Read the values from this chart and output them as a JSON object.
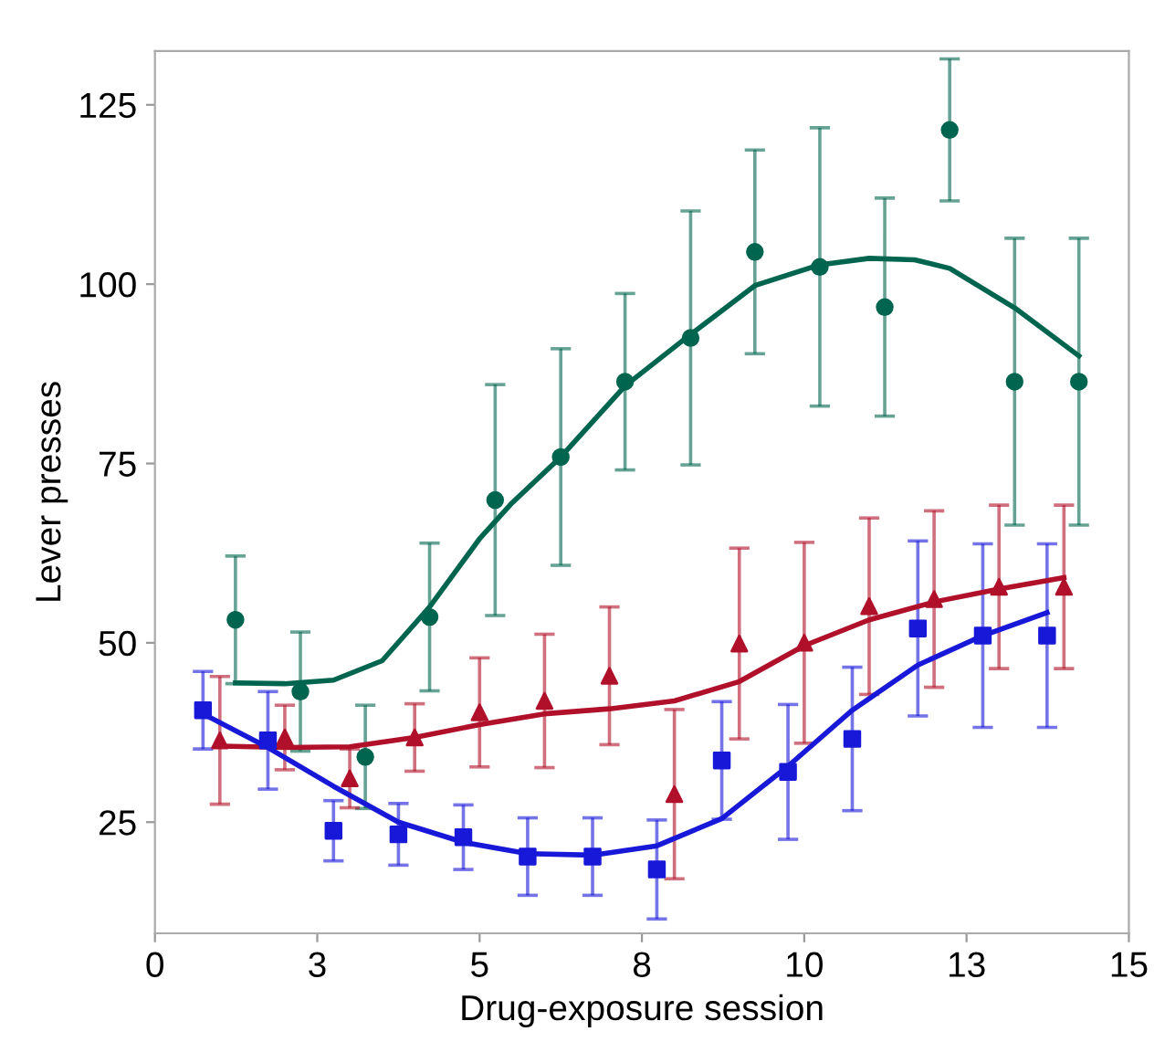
{
  "chart_data": {
    "type": "scatter",
    "xlabel": "Drug-exposure session",
    "ylabel": "Lever presses",
    "xlim": [
      0,
      15
    ],
    "xticks": [
      0,
      {
        "value": 2.5,
        "label": "3"
      },
      5,
      {
        "value": 7.5,
        "label": "8"
      },
      10,
      {
        "value": 12.5,
        "label": "13"
      },
      15
    ],
    "ylim": [
      9.5,
      132.5
    ],
    "yticks": [
      25,
      50,
      75,
      100,
      125
    ],
    "grid": false,
    "legend": false,
    "series": [
      {
        "marker": "circle",
        "color": "#00654f",
        "x": [
          1.24,
          2.24,
          3.24,
          4.23,
          5.24,
          6.25,
          7.24,
          8.25,
          9.24,
          10.24,
          11.24,
          12.24,
          13.24,
          14.23
        ],
        "values": [
          53.2,
          43.2,
          34.1,
          53.6,
          69.9,
          75.9,
          86.4,
          92.5,
          104.5,
          102.4,
          96.8,
          121.5,
          86.4,
          86.4
        ],
        "errors": [
          8.9,
          8.3,
          7.2,
          10.3,
          16.1,
          15.1,
          12.3,
          17.7,
          14.2,
          19.4,
          15.2,
          9.9,
          20,
          20
        ]
      },
      {
        "marker": "triangle",
        "color": "#b0102a",
        "x": [
          1,
          2,
          3,
          4,
          5,
          6,
          7,
          8,
          9,
          10,
          11,
          12,
          13,
          14
        ],
        "values": [
          36.4,
          36.8,
          31.1,
          36.8,
          40.3,
          41.9,
          45.4,
          28.9,
          49.9,
          50,
          55.1,
          56.1,
          57.8,
          57.8
        ],
        "errors": [
          8.9,
          4.5,
          4.1,
          4.7,
          7.6,
          9.3,
          9.6,
          11.8,
          13.3,
          14,
          12.3,
          12.3,
          11.4,
          11.4
        ]
      },
      {
        "marker": "square",
        "color": "#1818d8",
        "x": [
          0.74,
          1.74,
          2.75,
          3.75,
          4.75,
          5.74,
          6.74,
          7.73,
          8.73,
          9.75,
          10.74,
          11.75,
          12.75,
          13.74
        ],
        "values": [
          40.6,
          36.4,
          23.8,
          23.3,
          22.9,
          20.2,
          20.2,
          18.4,
          33.6,
          32.0,
          36.6,
          52.0,
          51.0,
          51.0
        ],
        "errors": [
          5.4,
          6.8,
          4.2,
          4.3,
          4.5,
          5.4,
          5.4,
          6.9,
          8.2,
          9.4,
          10,
          12.2,
          12.8,
          12.8
        ]
      },
      {
        "type": "line",
        "color": "#00654f",
        "x": [
          1.24,
          2.0,
          2.75,
          3.5,
          4.23,
          5.0,
          5.5,
          6.25,
          7.24,
          8.25,
          9.24,
          10.24,
          11.0,
          11.7,
          12.24,
          13.24,
          14.23
        ],
        "values": [
          44.4,
          44.3,
          44.8,
          47.5,
          55,
          64.5,
          69.5,
          75.9,
          85.8,
          93.0,
          99.8,
          102.7,
          103.6,
          103.4,
          102.2,
          96.7,
          90.0
        ]
      },
      {
        "type": "line",
        "color": "#b0102a",
        "x": [
          1,
          2,
          3,
          4,
          5,
          6,
          7,
          8,
          9,
          10,
          11,
          12,
          13,
          14
        ],
        "values": [
          35.6,
          35.4,
          35.5,
          36.8,
          38.6,
          40.1,
          40.8,
          41.9,
          44.6,
          49.6,
          53.2,
          55.7,
          57.5,
          59.1
        ]
      },
      {
        "type": "line",
        "color": "#1818d8",
        "x": [
          0.74,
          1.74,
          2.75,
          3.75,
          4.75,
          5.74,
          6.74,
          7.73,
          8.73,
          9.75,
          10.74,
          11.75,
          12.75,
          13.74
        ],
        "values": [
          40.1,
          35.4,
          30.0,
          25.0,
          22.2,
          20.6,
          20.4,
          21.7,
          25.5,
          32.8,
          40.6,
          46.9,
          51.0,
          54.2
        ]
      }
    ]
  }
}
